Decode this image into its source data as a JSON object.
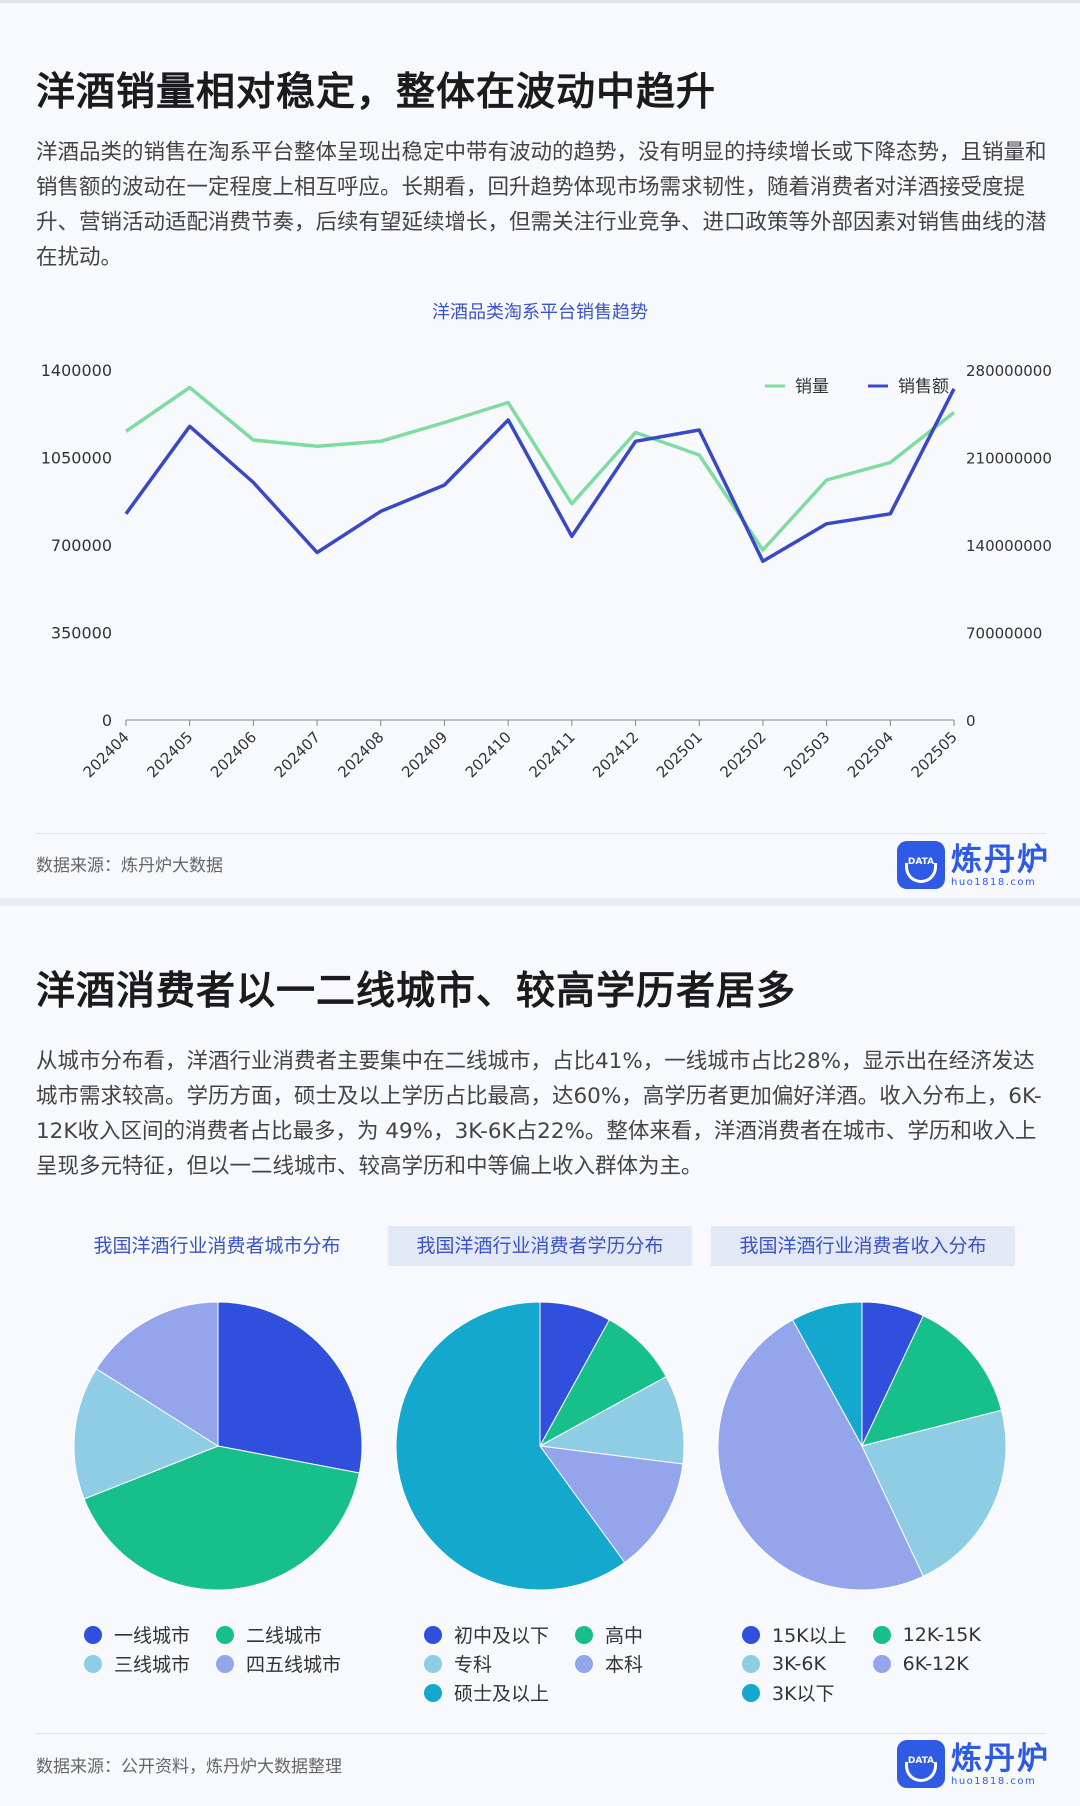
{
  "section1": {
    "title": "洋酒销量相对稳定，整体在波动中趋升",
    "paragraph": "洋酒品类的销售在淘系平台整体呈现出稳定中带有波动的趋势，没有明显的持续增长或下降态势，且销量和销售额的波动在一定程度上相互呼应。长期看，回升趋势体现市场需求韧性，随着消费者对洋酒接受度提升、营销活动适配消费节奏，后续有望延续增长，但需关注行业竞争、进口政策等外部因素对销售曲线的潜在扰动。",
    "source": "数据来源：炼丹炉大数据"
  },
  "section2": {
    "title": "洋酒消费者以一二线城市、较高学历者居多",
    "paragraph": "从城市分布看，洋酒行业消费者主要集中在二线城市，占比41%，一线城市占比28%，显示出在经济发达城市需求较高。学历方面，硕士及以上学历占比最高，达60%，高学历者更加偏好洋酒。收入分布上，6K-12K收入区间的消费者占比最多，为 49%，3K-6K占22%。整体来看，洋酒消费者在城市、学历和收入上呈现多元特征，但以一二线城市、较高学历和中等偏上收入群体为主。",
    "source": "数据来源：公开资料，炼丹炉大数据整理"
  },
  "logo": {
    "name": "炼丹炉",
    "url": "huo1818.com",
    "badge": "DATA"
  },
  "colors": {
    "accent": "#2f5be4",
    "line_volume": "#7fdca0",
    "line_sales": "#3949c6",
    "pie": [
      "#2f4fdc",
      "#17bf8a",
      "#8ecde4",
      "#94a5ec",
      "#14a8cf"
    ]
  },
  "chart_data": [
    {
      "type": "line",
      "title": "洋酒品类淘系平台销售趋势",
      "x": [
        "202404",
        "202405",
        "202406",
        "202407",
        "202408",
        "202409",
        "202410",
        "202411",
        "202412",
        "202501",
        "202502",
        "202503",
        "202504",
        "202505"
      ],
      "series": [
        {
          "name": "销量",
          "axis": "left",
          "values": [
            1155000,
            1330000,
            1120000,
            1095000,
            1115000,
            1190000,
            1270000,
            865000,
            1150000,
            1060000,
            680000,
            960000,
            1030000,
            1230000
          ]
        },
        {
          "name": "销售额",
          "axis": "right",
          "values": [
            165000000,
            235000000,
            190000000,
            134000000,
            167000000,
            188000000,
            240000000,
            147000000,
            223000000,
            232000000,
            127000000,
            157000000,
            165000000,
            265000000
          ]
        }
      ],
      "y_left": {
        "ticks": [
          "0",
          "350000",
          "700000",
          "1050000",
          "1400000"
        ],
        "lim": [
          0,
          1400000
        ]
      },
      "y_right": {
        "ticks": [
          "0",
          "70000000",
          "140000000",
          "210000000",
          "280000000"
        ],
        "lim": [
          0,
          280000000
        ]
      },
      "legend_position": "top-right",
      "grid": false
    },
    {
      "type": "pie",
      "title": "我国洋酒行业消费者城市分布",
      "labels": [
        "一线城市",
        "二线城市",
        "三线城市",
        "四五线城市"
      ],
      "values": [
        28,
        41,
        15,
        16
      ]
    },
    {
      "type": "pie",
      "title": "我国洋酒行业消费者学历分布",
      "labels": [
        "初中及以下",
        "高中",
        "专科",
        "本科",
        "硕士及以上"
      ],
      "values": [
        8,
        9,
        10,
        13,
        60
      ]
    },
    {
      "type": "pie",
      "title": "我国洋酒行业消费者收入分布",
      "labels": [
        "15K以上",
        "12K-15K",
        "3K-6K",
        "6K-12K",
        "3K以下"
      ],
      "values": [
        7,
        14,
        22,
        49,
        8
      ]
    }
  ]
}
